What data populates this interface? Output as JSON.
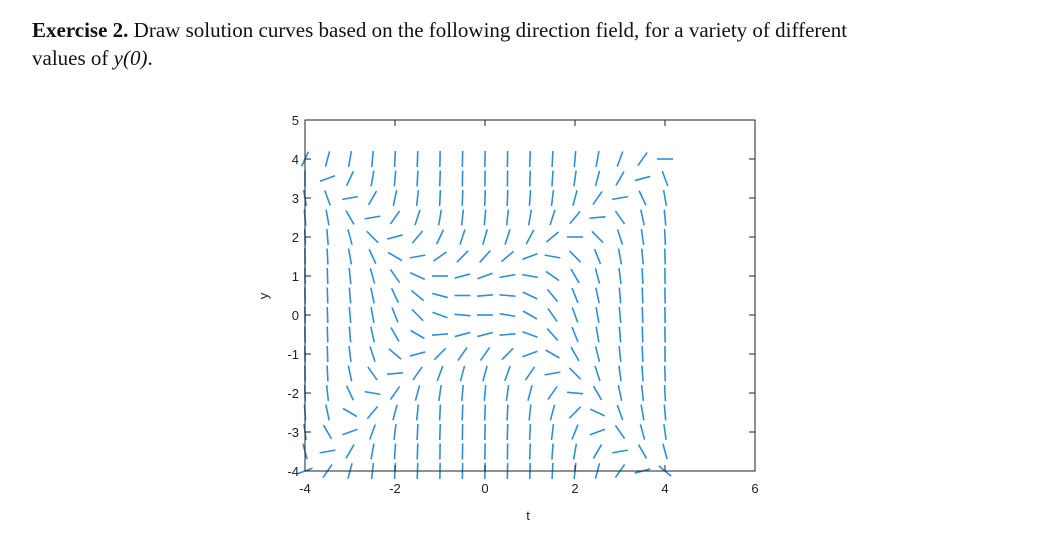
{
  "exercise": {
    "label": "Exercise 2.",
    "line1": "Draw solution curves based on the following direction field, for a variety of different",
    "line2": "values of",
    "math": "y(0)",
    "end": "."
  },
  "chart_data": {
    "type": "direction-field",
    "xlabel": "t",
    "ylabel": "y",
    "color": "#2f8fd6",
    "xlim": [
      -4,
      6
    ],
    "ylim": [
      -4,
      5
    ],
    "xticks": [
      -4,
      -2,
      0,
      2,
      4,
      6
    ],
    "yticks": [
      -4,
      -3,
      -2,
      -1,
      0,
      1,
      2,
      3,
      4,
      5
    ],
    "x": [
      -4,
      -3.5,
      -3,
      -2.5,
      -2,
      -1.5,
      -1,
      -0.5,
      0,
      0.5,
      1,
      1.5,
      2,
      2.5,
      3,
      3.5,
      4
    ],
    "y": [
      4,
      3.5,
      3,
      2.5,
      2,
      1.5,
      1,
      0.5,
      0,
      -0.5,
      -1,
      -1.5,
      -2,
      -2.5,
      -3,
      -3.5,
      -4
    ],
    "angles": [
      [
        65,
        75,
        80,
        85,
        87,
        88,
        89,
        89,
        89,
        89,
        88,
        87,
        85,
        80,
        70,
        55,
        0
      ],
      [
        90,
        20,
        65,
        80,
        85,
        87,
        88,
        89,
        89,
        89,
        88,
        86,
        82,
        75,
        60,
        15,
        -70
      ],
      [
        -80,
        -70,
        10,
        60,
        78,
        84,
        87,
        88,
        88,
        88,
        86,
        83,
        75,
        55,
        10,
        -65,
        -80
      ],
      [
        -85,
        -80,
        -60,
        10,
        55,
        72,
        80,
        84,
        85,
        84,
        80,
        72,
        50,
        5,
        -55,
        -78,
        -85
      ],
      [
        -88,
        -85,
        -75,
        -45,
        15,
        50,
        65,
        72,
        74,
        72,
        62,
        40,
        0,
        -45,
        -72,
        -82,
        -87
      ],
      [
        -89,
        -87,
        -80,
        -65,
        -30,
        10,
        35,
        45,
        48,
        40,
        20,
        -10,
        -45,
        -68,
        -80,
        -85,
        -88
      ],
      [
        -89,
        -88,
        -84,
        -75,
        -55,
        -25,
        0,
        15,
        20,
        10,
        -10,
        -35,
        -60,
        -75,
        -83,
        -87,
        -89
      ],
      [
        -89,
        -88,
        -85,
        -78,
        -65,
        -40,
        -15,
        0,
        5,
        -5,
        -25,
        -50,
        -68,
        -78,
        -85,
        -88,
        -89
      ],
      [
        -89,
        -88,
        -85,
        -80,
        -68,
        -45,
        -20,
        -5,
        0,
        -10,
        -30,
        -55,
        -70,
        -80,
        -85,
        -88,
        -89
      ],
      [
        -89,
        -88,
        -85,
        -78,
        -60,
        -30,
        5,
        15,
        15,
        5,
        -20,
        -48,
        -68,
        -80,
        -85,
        -88,
        -89
      ],
      [
        -89,
        -88,
        -83,
        -72,
        -40,
        15,
        45,
        55,
        55,
        45,
        20,
        -30,
        -60,
        -76,
        -84,
        -87,
        -89
      ],
      [
        -89,
        -87,
        -78,
        -55,
        5,
        55,
        70,
        75,
        75,
        70,
        55,
        10,
        -45,
        -72,
        -82,
        -86,
        -88
      ],
      [
        -88,
        -84,
        -65,
        -10,
        55,
        75,
        82,
        85,
        85,
        82,
        75,
        55,
        -5,
        -60,
        -78,
        -84,
        -87
      ],
      [
        -86,
        -78,
        -30,
        50,
        75,
        84,
        87,
        88,
        88,
        87,
        84,
        75,
        45,
        -25,
        -70,
        -80,
        -85
      ],
      [
        -82,
        -60,
        20,
        70,
        83,
        87,
        88,
        89,
        89,
        88,
        87,
        83,
        68,
        20,
        -55,
        -75,
        -82
      ],
      [
        -75,
        10,
        60,
        80,
        86,
        88,
        89,
        89,
        89,
        89,
        88,
        86,
        80,
        60,
        10,
        -60,
        -75
      ],
      [
        20,
        55,
        75,
        84,
        87,
        88,
        89,
        89,
        89,
        89,
        88,
        87,
        84,
        75,
        55,
        15,
        -40
      ]
    ]
  }
}
